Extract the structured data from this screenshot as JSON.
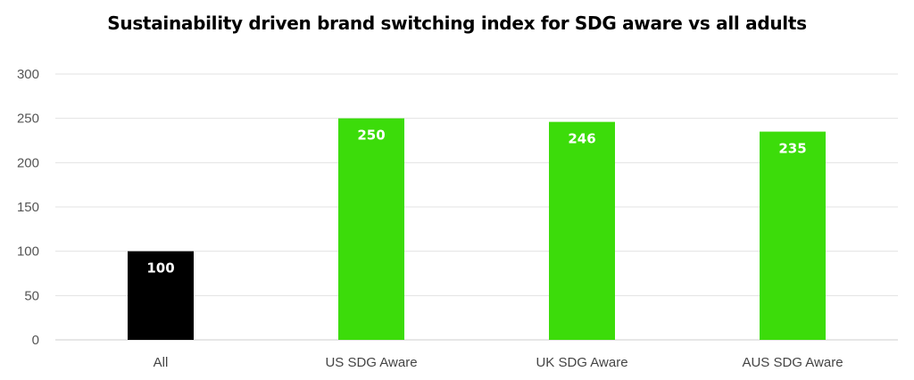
{
  "chart_data": {
    "type": "bar",
    "title": "Sustainability driven brand switching index for SDG aware vs all adults",
    "xlabel": "",
    "ylabel": "",
    "categories": [
      "All",
      "US SDG Aware",
      "UK SDG Aware",
      "AUS SDG Aware"
    ],
    "values": [
      100,
      250,
      246,
      235
    ],
    "data_labels": [
      "100",
      "250",
      "246",
      "235"
    ],
    "bar_colors": [
      "#000000",
      "#3cdc0a",
      "#3cdc0a",
      "#3cdc0a"
    ],
    "ylim": [
      0,
      300
    ],
    "yticks": [
      0,
      50,
      100,
      150,
      200,
      250,
      300
    ],
    "ytick_labels": [
      "0",
      "50",
      "100",
      "150",
      "200",
      "250",
      "300"
    ],
    "grid": true,
    "legend": "none"
  }
}
